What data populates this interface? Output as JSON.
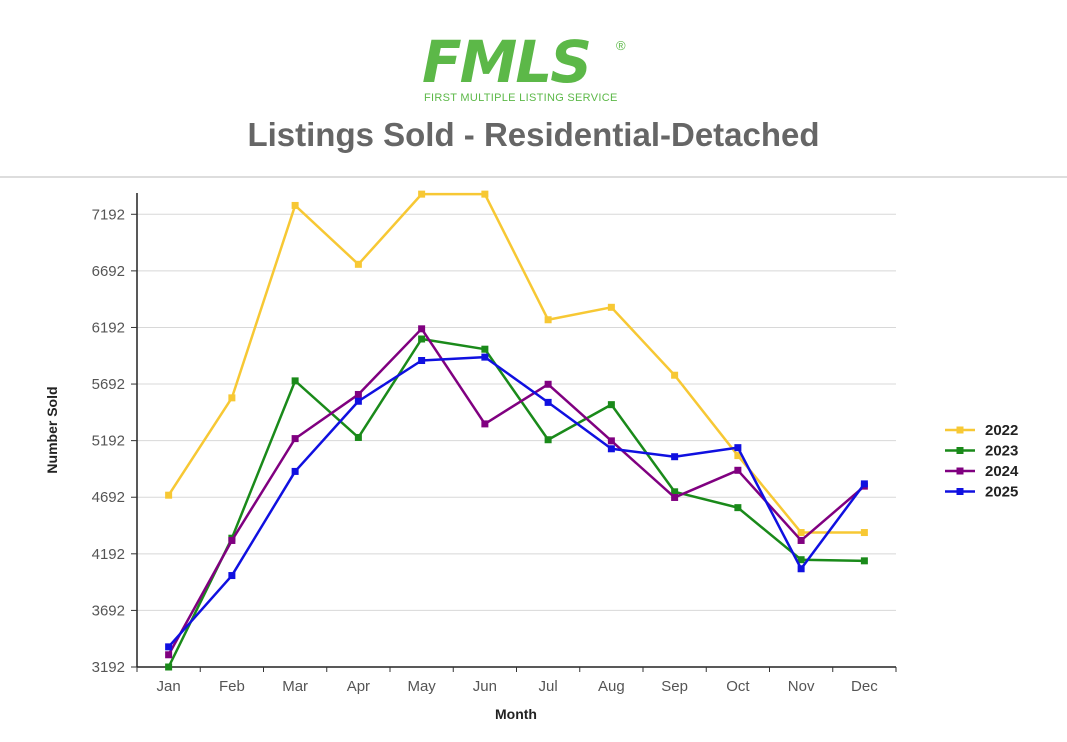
{
  "header": {
    "logo_text": "FMLS",
    "logo_reg": "®",
    "logo_subtitle": "FIRST MULTIPLE LISTING SERVICE",
    "title": "Listings Sold - Residential-Detached"
  },
  "colors": {
    "logo": "#5cb848",
    "title": "#666666"
  },
  "chart_data": {
    "type": "line",
    "title": "Listings Sold - Residential-Detached",
    "xlabel": "Month",
    "ylabel": "Number Sold",
    "categories": [
      "Jan",
      "Feb",
      "Mar",
      "Apr",
      "May",
      "Jun",
      "Jul",
      "Aug",
      "Sep",
      "Oct",
      "Nov",
      "Dec"
    ],
    "yticks": [
      3192,
      3692,
      4192,
      4692,
      5192,
      5692,
      6192,
      6692,
      7192
    ],
    "ylim": [
      3192,
      7380
    ],
    "grid": true,
    "legend": "right",
    "series": [
      {
        "name": "2022",
        "color": "#f7c834",
        "values": [
          4710,
          5570,
          7270,
          6750,
          7370,
          7370,
          6260,
          6370,
          5770,
          5060,
          4380,
          4380
        ]
      },
      {
        "name": "2023",
        "color": "#1a8a1a",
        "values": [
          3192,
          4330,
          5720,
          5220,
          6090,
          6000,
          5200,
          5510,
          4740,
          4600,
          4140,
          4130
        ]
      },
      {
        "name": "2024",
        "color": "#800080",
        "values": [
          3300,
          4310,
          5210,
          5600,
          6180,
          5340,
          5690,
          5190,
          4690,
          4930,
          4310,
          4790
        ]
      },
      {
        "name": "2025",
        "color": "#1010e0",
        "values": [
          3370,
          4000,
          4920,
          5540,
          5900,
          5930,
          5530,
          5120,
          5050,
          5130,
          4060,
          4810
        ]
      }
    ]
  }
}
